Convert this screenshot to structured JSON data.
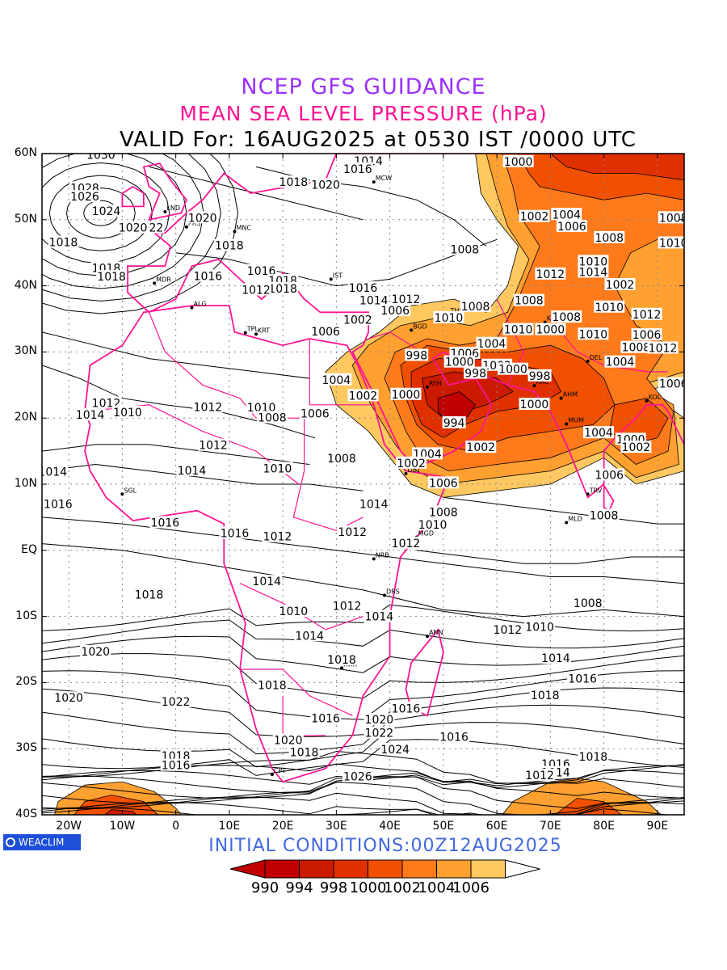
{
  "titles": {
    "line1": "NCEP GFS GUIDANCE",
    "line2": "MEAN SEA LEVEL PRESSURE (hPa)",
    "line3": "VALID For: 16AUG2025 at 0530 IST /0000 UTC"
  },
  "initial_conditions": "INITIAL  CONDITIONS:00Z12AUG2025",
  "logo": {
    "text": "WEACLIM",
    "icon": "circle-logo-icon"
  },
  "axes": {
    "lat_labels": [
      "60N",
      "50N",
      "40N",
      "30N",
      "20N",
      "10N",
      "EQ",
      "10S",
      "20S",
      "30S",
      "40S"
    ],
    "lon_labels": [
      "20W",
      "10W",
      "0",
      "10E",
      "20E",
      "30E",
      "40E",
      "50E",
      "60E",
      "70E",
      "80E",
      "90E"
    ],
    "lat_range": [
      -40,
      60
    ],
    "lon_range": [
      -25,
      95
    ],
    "grid": "dotted",
    "lat_step": 10,
    "lon_step": 10
  },
  "colorbar": {
    "levels": [
      "990",
      "994",
      "998",
      "1000",
      "1002",
      "1004",
      "1006"
    ],
    "colors": [
      "#c00000",
      "#cc1a00",
      "#e03000",
      "#f05000",
      "#ff7a1a",
      "#ffa030",
      "#ffc860"
    ],
    "overflow_color": "#ffffff"
  },
  "style": {
    "coast_color": "#ff1493",
    "contour_color": "#000000"
  },
  "isobar_labels": [
    {
      "t": "1030",
      "lon": -14,
      "lat": 59.8
    },
    {
      "t": "1028",
      "lon": -17,
      "lat": 54.8
    },
    {
      "t": "1026",
      "lon": -17,
      "lat": 53.5
    },
    {
      "t": "1024",
      "lon": -13,
      "lat": 51.3
    },
    {
      "t": "1022",
      "lon": -5,
      "lat": 48.8
    },
    {
      "t": "1020",
      "lon": -8,
      "lat": 48.8
    },
    {
      "t": "1020",
      "lon": 5,
      "lat": 50.3
    },
    {
      "t": "1018",
      "lon": -21,
      "lat": 46.6
    },
    {
      "t": "1018",
      "lon": -13,
      "lat": 42.7
    },
    {
      "t": "1018",
      "lon": -12,
      "lat": 41.4
    },
    {
      "t": "1018",
      "lon": 10,
      "lat": 46.1
    },
    {
      "t": "1016",
      "lon": 6,
      "lat": 41.5
    },
    {
      "t": "1016",
      "lon": 16,
      "lat": 42.3
    },
    {
      "t": "1018",
      "lon": 20,
      "lat": 40.8
    },
    {
      "t": "1018",
      "lon": 20,
      "lat": 39.6
    },
    {
      "t": "1012",
      "lon": 15,
      "lat": 39.4
    },
    {
      "t": "1014",
      "lon": 36,
      "lat": 58.9
    },
    {
      "t": "1016",
      "lon": 34,
      "lat": 57.7
    },
    {
      "t": "1018",
      "lon": 22,
      "lat": 55.7
    },
    {
      "t": "1020",
      "lon": 28,
      "lat": 55.3
    },
    {
      "t": "1016",
      "lon": 35,
      "lat": 39.7
    },
    {
      "t": "1014",
      "lon": 37,
      "lat": 37.8
    },
    {
      "t": "1012",
      "lon": 43,
      "lat": 38
    },
    {
      "t": "1006",
      "lon": 41,
      "lat": 36.3
    },
    {
      "t": "1008",
      "lon": 56,
      "lat": 36.9
    },
    {
      "t": "1008",
      "lon": 54,
      "lat": 45.5
    },
    {
      "t": "1000",
      "lon": 64,
      "lat": 58.8
    },
    {
      "t": "1002",
      "lon": 67,
      "lat": 50.5
    },
    {
      "t": "1004",
      "lon": 73,
      "lat": 50.8
    },
    {
      "t": "1006",
      "lon": 74,
      "lat": 49
    },
    {
      "t": "1008",
      "lon": 81,
      "lat": 47.3
    },
    {
      "t": "1008",
      "lon": 93,
      "lat": 50.3
    },
    {
      "t": "1010",
      "lon": 93,
      "lat": 46.5
    },
    {
      "t": "1010",
      "lon": 78,
      "lat": 43.7
    },
    {
      "t": "1012",
      "lon": 70,
      "lat": 41.8
    },
    {
      "t": "1014",
      "lon": 78,
      "lat": 42.1
    },
    {
      "t": "1002",
      "lon": 83,
      "lat": 40.2
    },
    {
      "t": "1008",
      "lon": 66,
      "lat": 37.8
    },
    {
      "t": "1010",
      "lon": 81,
      "lat": 36.8
    },
    {
      "t": "1012",
      "lon": 88,
      "lat": 35.7
    },
    {
      "t": "1008",
      "lon": 73,
      "lat": 35.3
    },
    {
      "t": "1010",
      "lon": 64,
      "lat": 33.4
    },
    {
      "t": "1000",
      "lon": 70,
      "lat": 33.4
    },
    {
      "t": "1010",
      "lon": 78,
      "lat": 32.7
    },
    {
      "t": "1006",
      "lon": 88,
      "lat": 32.6
    },
    {
      "t": "1008",
      "lon": 86,
      "lat": 30.7
    },
    {
      "t": "1012",
      "lon": 91,
      "lat": 30.6
    },
    {
      "t": "1004",
      "lon": 83,
      "lat": 28.5
    },
    {
      "t": "1010",
      "lon": 51,
      "lat": 35.2
    },
    {
      "t": "1002",
      "lon": 34,
      "lat": 34.9
    },
    {
      "t": "1006",
      "lon": 28,
      "lat": 33.1
    },
    {
      "t": "1004",
      "lon": 59,
      "lat": 31.3
    },
    {
      "t": "1006",
      "lon": 54,
      "lat": 29.8
    },
    {
      "t": "998",
      "lon": 45,
      "lat": 29.5
    },
    {
      "t": "1000",
      "lon": 53,
      "lat": 28.5
    },
    {
      "t": "1002",
      "lon": 60,
      "lat": 28
    },
    {
      "t": "998",
      "lon": 56,
      "lat": 26.8
    },
    {
      "t": "1000",
      "lon": 63,
      "lat": 27.4
    },
    {
      "t": "998",
      "lon": 68,
      "lat": 26.4
    },
    {
      "t": "1000",
      "lon": 43,
      "lat": 23.6
    },
    {
      "t": "1002",
      "lon": 35,
      "lat": 23.4
    },
    {
      "t": "1004",
      "lon": 30,
      "lat": 25.8
    },
    {
      "t": "1000",
      "lon": 67,
      "lat": 22.1
    },
    {
      "t": "994",
      "lon": 52,
      "lat": 19.3
    },
    {
      "t": "1002",
      "lon": 57,
      "lat": 15.6
    },
    {
      "t": "1004",
      "lon": 47,
      "lat": 14.6
    },
    {
      "t": "1002",
      "lon": 44,
      "lat": 13.2
    },
    {
      "t": "1006",
      "lon": 50,
      "lat": 10.2
    },
    {
      "t": "1004",
      "lon": 79,
      "lat": 17.8
    },
    {
      "t": "1000",
      "lon": 85,
      "lat": 16.8
    },
    {
      "t": "1002",
      "lon": 86,
      "lat": 15.6
    },
    {
      "t": "1006",
      "lon": 93,
      "lat": 25.2
    },
    {
      "t": "1006",
      "lon": 81,
      "lat": 11.4
    },
    {
      "t": "1008",
      "lon": 80,
      "lat": 5.3
    },
    {
      "t": "1008",
      "lon": 50,
      "lat": 5.8
    },
    {
      "t": "1010",
      "lon": 48,
      "lat": 3.9
    },
    {
      "t": "1012",
      "lon": 43,
      "lat": 1.1
    },
    {
      "t": "1012",
      "lon": 33,
      "lat": 2.8
    },
    {
      "t": "1012",
      "lon": 19,
      "lat": 2.1
    },
    {
      "t": "1016",
      "lon": 11,
      "lat": 2.6
    },
    {
      "t": "1016",
      "lon": -2,
      "lat": 4.2
    },
    {
      "t": "1016",
      "lon": -22,
      "lat": 7
    },
    {
      "t": "1014",
      "lon": -23,
      "lat": 11.9
    },
    {
      "t": "1014",
      "lon": 3,
      "lat": 12.1
    },
    {
      "t": "1012",
      "lon": 7,
      "lat": 15.9
    },
    {
      "t": "1012",
      "lon": -13,
      "lat": 22.3
    },
    {
      "t": "1014",
      "lon": -16,
      "lat": 20.5
    },
    {
      "t": "1010",
      "lon": -9,
      "lat": 20.9
    },
    {
      "t": "1012",
      "lon": 6,
      "lat": 21.7
    },
    {
      "t": "1010",
      "lon": 16,
      "lat": 21.6
    },
    {
      "t": "1008",
      "lon": 18,
      "lat": 20.1
    },
    {
      "t": "1006",
      "lon": 26,
      "lat": 20.7
    },
    {
      "t": "1008",
      "lon": 31,
      "lat": 13.9
    },
    {
      "t": "1010",
      "lon": 19,
      "lat": 12.4
    },
    {
      "t": "1014",
      "lon": 37,
      "lat": 7
    },
    {
      "t": "1014",
      "lon": 17,
      "lat": -4.7
    },
    {
      "t": "1018",
      "lon": -5,
      "lat": -6.7
    },
    {
      "t": "1012",
      "lon": 32,
      "lat": -8.4
    },
    {
      "t": "1010",
      "lon": 22,
      "lat": -9.2
    },
    {
      "t": "1014",
      "lon": 38,
      "lat": -10
    },
    {
      "t": "1014",
      "lon": 25,
      "lat": -12.9
    },
    {
      "t": "1012",
      "lon": 62,
      "lat": -12
    },
    {
      "t": "1010",
      "lon": 68,
      "lat": -11.6
    },
    {
      "t": "1008",
      "lon": 77,
      "lat": -8
    },
    {
      "t": "1014",
      "lon": 71,
      "lat": -16.3
    },
    {
      "t": "1016",
      "lon": 76,
      "lat": -19.4
    },
    {
      "t": "1018",
      "lon": 69,
      "lat": -21.9
    },
    {
      "t": "1020",
      "lon": -15,
      "lat": -15.3
    },
    {
      "t": "1018",
      "lon": 31,
      "lat": -16.5
    },
    {
      "t": "1018",
      "lon": 18,
      "lat": -20.4
    },
    {
      "t": "1020",
      "lon": -20,
      "lat": -22.3
    },
    {
      "t": "1022",
      "lon": 0,
      "lat": -22.9
    },
    {
      "t": "1016",
      "lon": 28,
      "lat": -25.4
    },
    {
      "t": "1016",
      "lon": 43,
      "lat": -23.9
    },
    {
      "t": "1020",
      "lon": 38,
      "lat": -25.6
    },
    {
      "t": "1022",
      "lon": 38,
      "lat": -27.6
    },
    {
      "t": "1016",
      "lon": 52,
      "lat": -28.2
    },
    {
      "t": "1024",
      "lon": 41,
      "lat": -30.1
    },
    {
      "t": "1020",
      "lon": 21,
      "lat": -28.7
    },
    {
      "t": "1018",
      "lon": 24,
      "lat": -30.5
    },
    {
      "t": "1018",
      "lon": 0,
      "lat": -31.1
    },
    {
      "t": "1016",
      "lon": 0,
      "lat": -32.5
    },
    {
      "t": "1026",
      "lon": 34,
      "lat": -34.2
    },
    {
      "t": "1016",
      "lon": 71,
      "lat": -32.3
    },
    {
      "t": "1018",
      "lon": 78,
      "lat": -31.2
    },
    {
      "t": "1014",
      "lon": 71,
      "lat": -33.6
    },
    {
      "t": "1012",
      "lon": 68,
      "lat": -34
    }
  ],
  "station_labels": [
    {
      "t": "LND",
      "lon": -2,
      "lat": 51.2
    },
    {
      "t": "PRS",
      "lon": 2,
      "lat": 48.9
    },
    {
      "t": "MNC",
      "lon": 11,
      "lat": 48.2
    },
    {
      "t": "MCW",
      "lon": 37,
      "lat": 55.7
    },
    {
      "t": "MDR",
      "lon": -4,
      "lat": 40.4
    },
    {
      "t": "IST",
      "lon": 29,
      "lat": 41
    },
    {
      "t": "ALG",
      "lon": 3,
      "lat": 36.7
    },
    {
      "t": "TPL",
      "lon": 13,
      "lat": 32.9
    },
    {
      "t": "KRT",
      "lon": 15,
      "lat": 32.7
    },
    {
      "t": "BGD",
      "lon": 44,
      "lat": 33.3
    },
    {
      "t": "THN",
      "lon": 51,
      "lat": 35.7
    },
    {
      "t": "KBL",
      "lon": 69,
      "lat": 34.5
    },
    {
      "t": "KRC",
      "lon": 67,
      "lat": 24.9
    },
    {
      "t": "RYH",
      "lon": 47,
      "lat": 24.7
    },
    {
      "t": "AHM",
      "lon": 72,
      "lat": 23
    },
    {
      "t": "MUM",
      "lon": 73,
      "lat": 19.1
    },
    {
      "t": "KOL",
      "lon": 88,
      "lat": 22.6
    },
    {
      "t": "DEL",
      "lon": 77,
      "lat": 28.6
    },
    {
      "t": "DBT",
      "lon": 43,
      "lat": 11.6
    },
    {
      "t": "SGL",
      "lon": -10,
      "lat": 8.5
    },
    {
      "t": "MGD",
      "lon": 45,
      "lat": 2
    },
    {
      "t": "NRB",
      "lon": 37,
      "lat": -1.3
    },
    {
      "t": "DRS",
      "lon": 39,
      "lat": -6.8
    },
    {
      "t": "ANN",
      "lon": 47,
      "lat": -13
    },
    {
      "t": "HRR",
      "lon": 31,
      "lat": -17.8
    },
    {
      "t": "CPT",
      "lon": 18,
      "lat": -33.9
    },
    {
      "t": "MLD",
      "lon": 73,
      "lat": 4.2
    },
    {
      "t": "TRV",
      "lon": 77,
      "lat": 8.5
    }
  ]
}
